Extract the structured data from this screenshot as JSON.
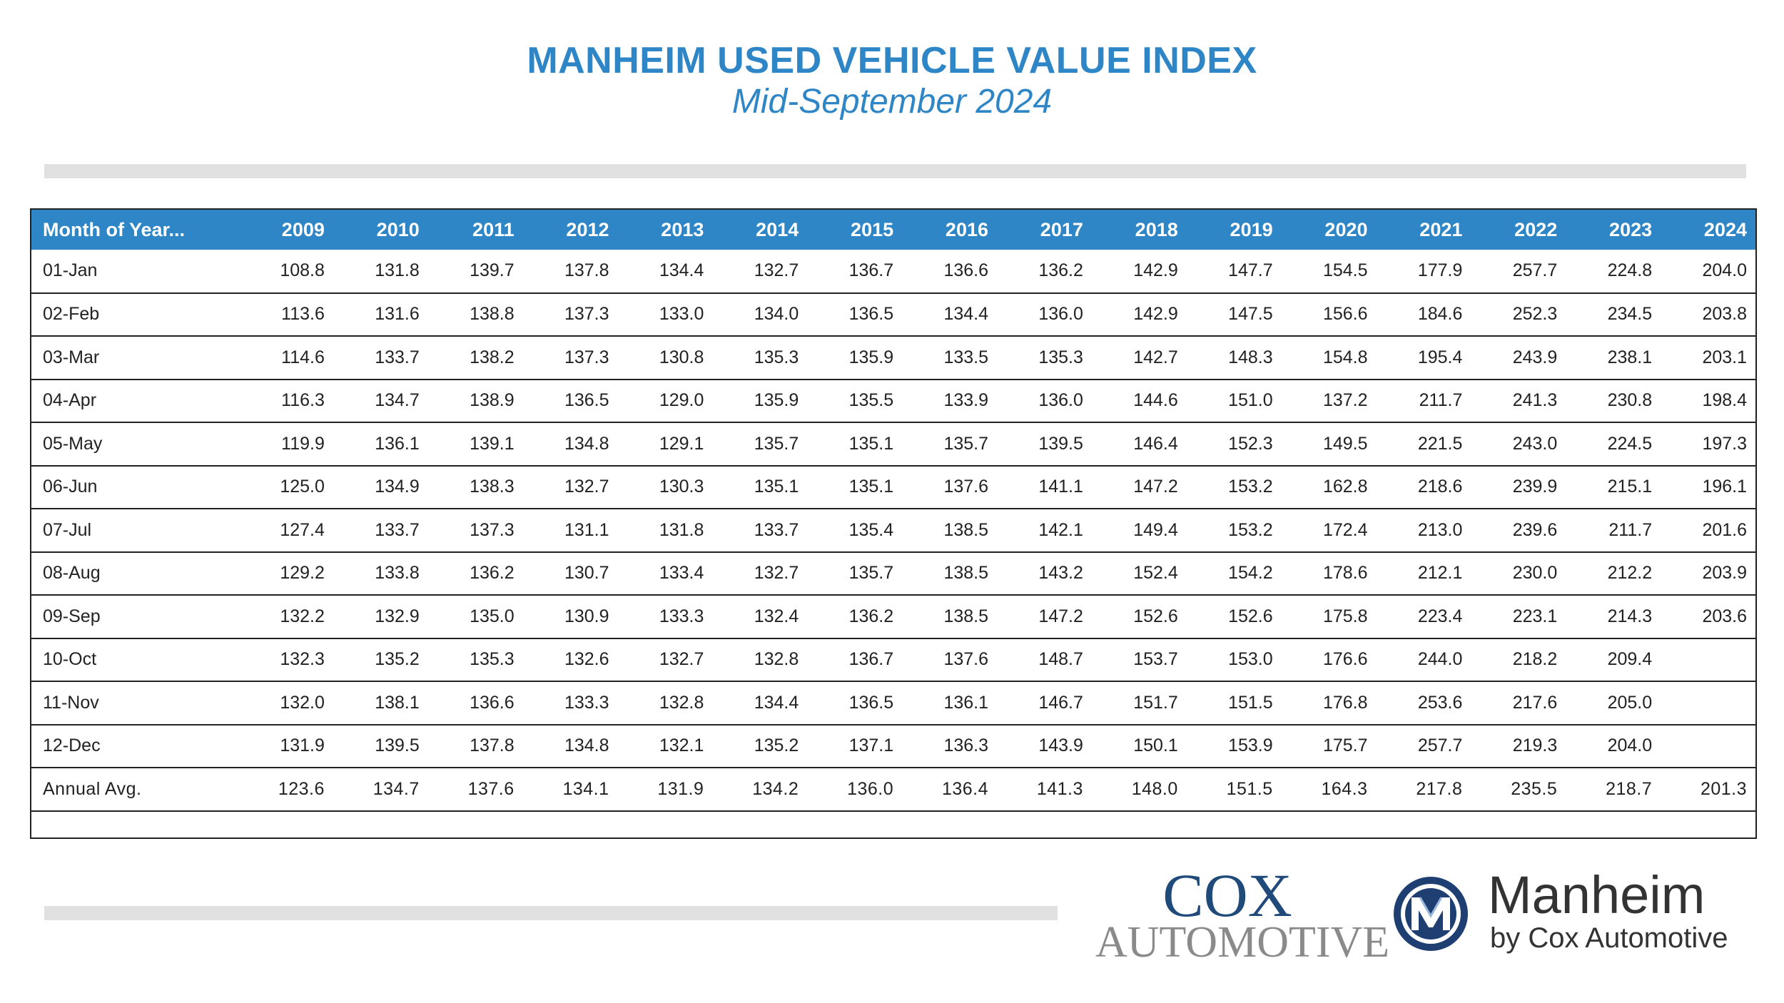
{
  "header": {
    "title": "MANHEIM USED VEHICLE VALUE INDEX",
    "subtitle": "Mid-September 2024"
  },
  "chart_data": {
    "type": "table",
    "title": "MANHEIM USED VEHICLE VALUE INDEX",
    "subtitle": "Mid-September 2024",
    "columns": [
      "Month of Year...",
      "2009",
      "2010",
      "2011",
      "2012",
      "2013",
      "2014",
      "2015",
      "2016",
      "2017",
      "2018",
      "2019",
      "2020",
      "2021",
      "2022",
      "2023",
      "2024"
    ],
    "rows": [
      {
        "label": "01-Jan",
        "values": [
          "108.8",
          "131.8",
          "139.7",
          "137.8",
          "134.4",
          "132.7",
          "136.7",
          "136.6",
          "136.2",
          "142.9",
          "147.7",
          "154.5",
          "177.9",
          "257.7",
          "224.8",
          "204.0"
        ]
      },
      {
        "label": "02-Feb",
        "values": [
          "113.6",
          "131.6",
          "138.8",
          "137.3",
          "133.0",
          "134.0",
          "136.5",
          "134.4",
          "136.0",
          "142.9",
          "147.5",
          "156.6",
          "184.6",
          "252.3",
          "234.5",
          "203.8"
        ]
      },
      {
        "label": "03-Mar",
        "values": [
          "114.6",
          "133.7",
          "138.2",
          "137.3",
          "130.8",
          "135.3",
          "135.9",
          "133.5",
          "135.3",
          "142.7",
          "148.3",
          "154.8",
          "195.4",
          "243.9",
          "238.1",
          "203.1"
        ]
      },
      {
        "label": "04-Apr",
        "values": [
          "116.3",
          "134.7",
          "138.9",
          "136.5",
          "129.0",
          "135.9",
          "135.5",
          "133.9",
          "136.0",
          "144.6",
          "151.0",
          "137.2",
          "211.7",
          "241.3",
          "230.8",
          "198.4"
        ]
      },
      {
        "label": "05-May",
        "values": [
          "119.9",
          "136.1",
          "139.1",
          "134.8",
          "129.1",
          "135.7",
          "135.1",
          "135.7",
          "139.5",
          "146.4",
          "152.3",
          "149.5",
          "221.5",
          "243.0",
          "224.5",
          "197.3"
        ]
      },
      {
        "label": "06-Jun",
        "values": [
          "125.0",
          "134.9",
          "138.3",
          "132.7",
          "130.3",
          "135.1",
          "135.1",
          "137.6",
          "141.1",
          "147.2",
          "153.2",
          "162.8",
          "218.6",
          "239.9",
          "215.1",
          "196.1"
        ]
      },
      {
        "label": "07-Jul",
        "values": [
          "127.4",
          "133.7",
          "137.3",
          "131.1",
          "131.8",
          "133.7",
          "135.4",
          "138.5",
          "142.1",
          "149.4",
          "153.2",
          "172.4",
          "213.0",
          "239.6",
          "211.7",
          "201.6"
        ]
      },
      {
        "label": "08-Aug",
        "values": [
          "129.2",
          "133.8",
          "136.2",
          "130.7",
          "133.4",
          "132.7",
          "135.7",
          "138.5",
          "143.2",
          "152.4",
          "154.2",
          "178.6",
          "212.1",
          "230.0",
          "212.2",
          "203.9"
        ]
      },
      {
        "label": "09-Sep",
        "values": [
          "132.2",
          "132.9",
          "135.0",
          "130.9",
          "133.3",
          "132.4",
          "136.2",
          "138.5",
          "147.2",
          "152.6",
          "152.6",
          "175.8",
          "223.4",
          "223.1",
          "214.3",
          "203.6"
        ]
      },
      {
        "label": "10-Oct",
        "values": [
          "132.3",
          "135.2",
          "135.3",
          "132.6",
          "132.7",
          "132.8",
          "136.7",
          "137.6",
          "148.7",
          "153.7",
          "153.0",
          "176.6",
          "244.0",
          "218.2",
          "209.4",
          ""
        ]
      },
      {
        "label": "11-Nov",
        "values": [
          "132.0",
          "138.1",
          "136.6",
          "133.3",
          "132.8",
          "134.4",
          "136.5",
          "136.1",
          "146.7",
          "151.7",
          "151.5",
          "176.8",
          "253.6",
          "217.6",
          "205.0",
          ""
        ]
      },
      {
        "label": "12-Dec",
        "values": [
          "131.9",
          "139.5",
          "137.8",
          "134.8",
          "132.1",
          "135.2",
          "137.1",
          "136.3",
          "143.9",
          "150.1",
          "153.9",
          "175.7",
          "257.7",
          "219.3",
          "204.0",
          ""
        ]
      },
      {
        "label": "Annual Avg.",
        "values": [
          "123.6",
          "134.7",
          "137.6",
          "134.1",
          "131.9",
          "134.2",
          "136.0",
          "136.4",
          "141.3",
          "148.0",
          "151.5",
          "164.3",
          "217.8",
          "235.5",
          "218.7",
          "201.3"
        ]
      }
    ]
  },
  "logos": {
    "cox_top": "COX",
    "cox_bottom": "AUTOMOTIVE",
    "manheim_name": "Manheim",
    "manheim_by": "by Cox Automotive",
    "manheim_icon": "manheim-m-icon"
  },
  "colors": {
    "accent": "#2f86c6",
    "header_text": "#ffffff",
    "cox_blue": "#1f4a7a",
    "cox_gray": "#8a8a8a"
  }
}
